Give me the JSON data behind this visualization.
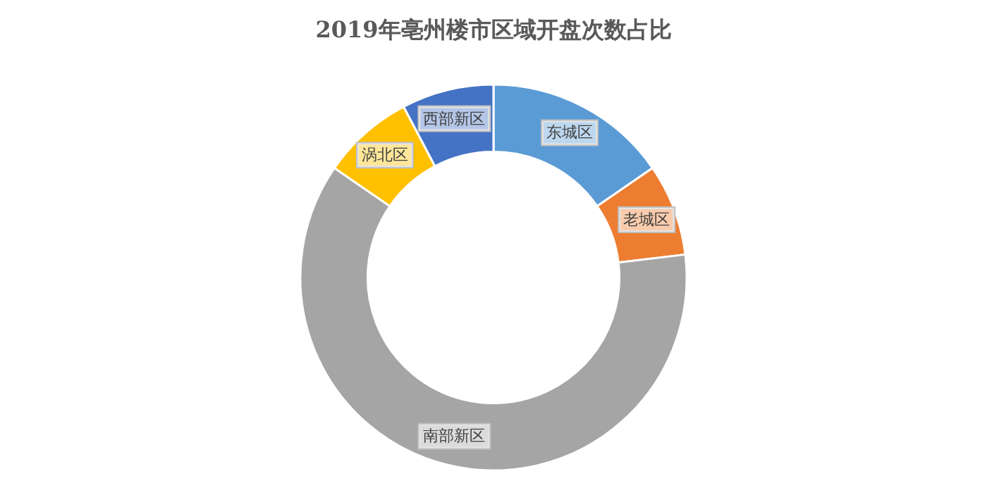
{
  "chart_data": {
    "type": "donut",
    "title": "2019年亳州楼市区域开盘次数占比",
    "categories": [
      "东城区",
      "老城区",
      "南部新区",
      "涡北区",
      "西部新区"
    ],
    "values": [
      15.4,
      7.7,
      61.5,
      7.7,
      7.7
    ],
    "colors": [
      "#5b9bd5",
      "#ed7d31",
      "#a5a5a5",
      "#ffc000",
      "#4472c4"
    ],
    "legend": false
  }
}
